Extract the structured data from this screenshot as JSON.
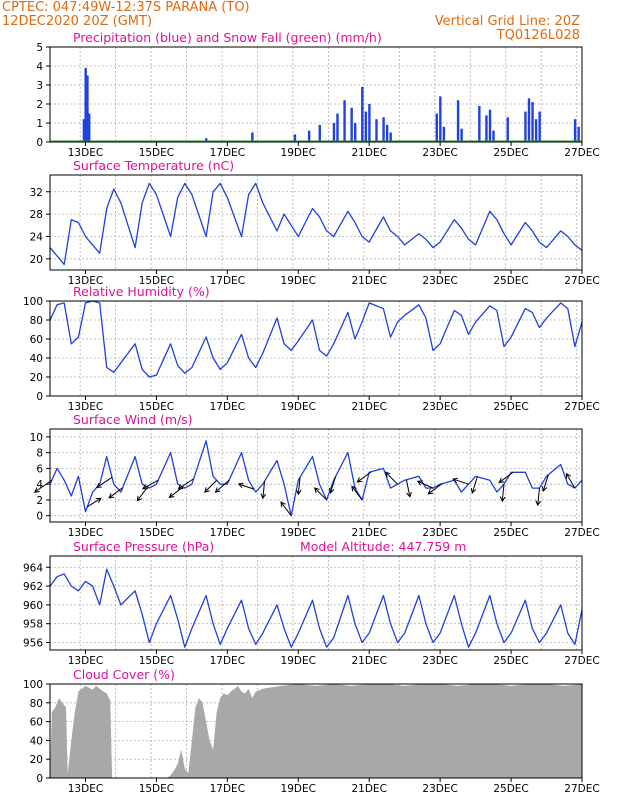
{
  "header": {
    "line1": "CPTEC:   047:49W-12:37S   PARANA (TO)",
    "line2": "12DEC2020 20Z (GMT)",
    "grid_note": "Vertical Grid Line: 20Z",
    "run_id": "TQ0126L028",
    "text_color": "#e06a10"
  },
  "x_ticks": [
    "13DEC",
    "15DEC",
    "17DEC",
    "19DEC",
    "21DEC",
    "23DEC",
    "25DEC",
    "27DEC"
  ],
  "chart_data": [
    {
      "type": "bar",
      "title": "Precipitation (blue) and Snow Fall (green) (mm/h)",
      "ylim": [
        0,
        5
      ],
      "yticks": [
        "0",
        "1",
        "2",
        "3",
        "4",
        "5"
      ],
      "series": [
        {
          "name": "Precipitation",
          "color": "#2040e0",
          "x_days": [
            12.95,
            13.0,
            13.05,
            13.1,
            16.4,
            17.7,
            18.9,
            19.3,
            19.6,
            20.0,
            20.1,
            20.3,
            20.5,
            20.6,
            20.8,
            20.9,
            21.0,
            21.2,
            21.4,
            21.5,
            21.6,
            22.9,
            23.0,
            23.1,
            23.5,
            23.6,
            24.1,
            24.3,
            24.4,
            24.5,
            24.9,
            25.4,
            25.5,
            25.6,
            25.7,
            25.8,
            26.8,
            26.9
          ],
          "values": [
            1.2,
            3.9,
            3.5,
            1.5,
            0.2,
            0.5,
            0.4,
            0.6,
            0.9,
            1.0,
            1.5,
            2.2,
            1.8,
            1.0,
            2.9,
            1.6,
            2.0,
            1.2,
            1.3,
            0.9,
            0.5,
            1.5,
            2.4,
            0.8,
            2.2,
            0.7,
            1.9,
            1.4,
            1.7,
            0.6,
            1.3,
            1.6,
            2.3,
            2.1,
            1.2,
            1.6,
            1.2,
            0.8
          ]
        },
        {
          "name": "Snow Fall",
          "color": "#20a020",
          "x_days": [],
          "values": []
        }
      ]
    },
    {
      "type": "line",
      "title": "Surface Temperature (nC)",
      "ylim": [
        18,
        35
      ],
      "yticks": [
        "20",
        "24",
        "28",
        "32"
      ],
      "series": [
        {
          "color": "#2040e0",
          "x_days": [
            12.0,
            12.2,
            12.4,
            12.6,
            12.8,
            13.0,
            13.2,
            13.4,
            13.6,
            13.8,
            14.0,
            14.4,
            14.6,
            14.8,
            15.0,
            15.4,
            15.6,
            15.8,
            16.0,
            16.4,
            16.6,
            16.8,
            17.0,
            17.4,
            17.6,
            17.8,
            18.0,
            18.4,
            18.6,
            18.8,
            19.0,
            19.4,
            19.6,
            19.8,
            20.0,
            20.4,
            20.6,
            20.8,
            21.0,
            21.4,
            21.6,
            21.8,
            22.0,
            22.4,
            22.6,
            22.8,
            23.0,
            23.4,
            23.6,
            23.8,
            24.0,
            24.4,
            24.6,
            24.8,
            25.0,
            25.4,
            25.6,
            25.8,
            26.0,
            26.4,
            26.6,
            26.8,
            27.0
          ],
          "values": [
            22,
            20.5,
            19,
            27,
            26.5,
            24,
            22.5,
            21,
            29,
            32.5,
            30,
            22,
            30,
            33.5,
            31.5,
            24,
            31,
            33.5,
            31.5,
            24,
            32,
            33.5,
            31,
            24,
            31.5,
            33.5,
            30,
            25,
            28,
            26,
            24,
            29,
            27.5,
            25,
            24,
            28.5,
            26.5,
            24,
            23,
            27.5,
            25,
            24,
            22.5,
            24.5,
            23.5,
            22,
            23,
            27,
            25.5,
            23.5,
            22.5,
            28.5,
            27,
            24.5,
            22.5,
            26.5,
            25,
            23,
            22,
            25,
            24,
            22.5,
            21.5
          ]
        }
      ]
    },
    {
      "type": "line",
      "title": "Relative Humidity (%)",
      "ylim": [
        0,
        100
      ],
      "yticks": [
        "0",
        "20",
        "40",
        "60",
        "80",
        "100"
      ],
      "series": [
        {
          "color": "#2040e0",
          "x_days": [
            12.0,
            12.2,
            12.4,
            12.6,
            12.8,
            13.0,
            13.2,
            13.4,
            13.6,
            13.8,
            14.0,
            14.4,
            14.6,
            14.8,
            15.0,
            15.4,
            15.6,
            15.8,
            16.0,
            16.4,
            16.6,
            16.8,
            17.0,
            17.4,
            17.6,
            17.8,
            18.0,
            18.4,
            18.6,
            18.8,
            19.0,
            19.4,
            19.6,
            19.8,
            20.0,
            20.4,
            20.6,
            20.8,
            21.0,
            21.4,
            21.6,
            21.8,
            22.0,
            22.4,
            22.6,
            22.8,
            23.0,
            23.4,
            23.6,
            23.8,
            24.0,
            24.4,
            24.6,
            24.8,
            25.0,
            25.4,
            25.6,
            25.8,
            26.0,
            26.4,
            26.6,
            26.8,
            27.0
          ],
          "values": [
            80,
            96,
            98,
            55,
            62,
            98,
            100,
            98,
            30,
            25,
            35,
            55,
            28,
            20,
            22,
            55,
            32,
            24,
            30,
            62,
            40,
            28,
            35,
            65,
            40,
            30,
            45,
            82,
            55,
            48,
            58,
            80,
            48,
            42,
            55,
            88,
            60,
            78,
            98,
            92,
            62,
            78,
            85,
            96,
            82,
            48,
            55,
            90,
            85,
            65,
            78,
            95,
            90,
            52,
            62,
            92,
            88,
            72,
            82,
            98,
            92,
            52,
            78
          ]
        }
      ]
    },
    {
      "type": "line",
      "title": "Surface Wind (m/s)",
      "ylim": [
        -0.8,
        11
      ],
      "yticks": [
        "0",
        "2",
        "4",
        "6",
        "8",
        "10"
      ],
      "series": [
        {
          "color": "#2040e0",
          "x_days": [
            12.0,
            12.2,
            12.4,
            12.6,
            12.8,
            13.0,
            13.2,
            13.4,
            13.6,
            13.8,
            14.0,
            14.4,
            14.6,
            14.8,
            15.0,
            15.4,
            15.6,
            15.8,
            16.0,
            16.4,
            16.6,
            16.8,
            17.0,
            17.4,
            17.6,
            17.8,
            18.0,
            18.4,
            18.6,
            18.8,
            19.0,
            19.4,
            19.6,
            19.8,
            20.0,
            20.4,
            20.6,
            20.8,
            21.0,
            21.4,
            21.6,
            21.8,
            22.0,
            22.4,
            22.6,
            22.8,
            23.0,
            23.4,
            23.6,
            23.8,
            24.0,
            24.4,
            24.6,
            24.8,
            25.0,
            25.4,
            25.6,
            25.8,
            26.0,
            26.4,
            26.6,
            26.8,
            27.0
          ],
          "values": [
            4,
            6,
            4.5,
            2.5,
            5,
            0.5,
            3,
            4,
            7.5,
            4,
            3,
            7.5,
            4,
            3.5,
            4,
            8,
            4,
            3.5,
            4,
            9.5,
            5,
            4,
            4,
            8,
            4.5,
            3,
            4,
            7,
            4,
            0,
            4.5,
            7.5,
            4,
            2,
            4.5,
            8,
            3.5,
            2,
            5.5,
            6,
            3.5,
            4,
            4.5,
            5,
            3.5,
            3.5,
            4,
            4.5,
            3,
            4,
            5,
            4.5,
            3,
            4,
            5.5,
            5.5,
            3.5,
            3.5,
            5,
            6.5,
            4,
            3.5,
            4.5
          ]
        }
      ],
      "arrows": [
        {
          "x_day": 12.05,
          "dx": -1.0,
          "dy": -0.7
        },
        {
          "x_day": 13.05,
          "dx": 0.8,
          "dy": 0.5
        },
        {
          "x_day": 13.75,
          "dx": -0.9,
          "dy": -0.6
        },
        {
          "x_day": 14.05,
          "dx": -0.8,
          "dy": -0.6
        },
        {
          "x_day": 14.75,
          "dx": -0.6,
          "dy": -0.8
        },
        {
          "x_day": 15.05,
          "dx": -0.9,
          "dy": -0.5
        },
        {
          "x_day": 15.75,
          "dx": -0.8,
          "dy": -0.6
        },
        {
          "x_day": 16.05,
          "dx": -0.9,
          "dy": -0.6
        },
        {
          "x_day": 16.7,
          "dx": -0.7,
          "dy": -0.7
        },
        {
          "x_day": 17.05,
          "dx": -0.8,
          "dy": -0.7
        },
        {
          "x_day": 17.75,
          "dx": -0.9,
          "dy": 0.3
        },
        {
          "x_day": 18.05,
          "dx": -0.1,
          "dy": -1.0
        },
        {
          "x_day": 18.8,
          "dx": -0.6,
          "dy": 0.8
        },
        {
          "x_day": 19.05,
          "dx": -0.1,
          "dy": -1.0
        },
        {
          "x_day": 19.8,
          "dx": -0.7,
          "dy": 0.7
        },
        {
          "x_day": 20.05,
          "dx": -0.3,
          "dy": -0.95
        },
        {
          "x_day": 20.8,
          "dx": -0.6,
          "dy": 0.8
        },
        {
          "x_day": 21.05,
          "dx": -0.8,
          "dy": -0.6
        },
        {
          "x_day": 21.8,
          "dx": -0.7,
          "dy": 0.7
        },
        {
          "x_day": 22.05,
          "dx": 0.2,
          "dy": -1.0
        },
        {
          "x_day": 22.8,
          "dx": -0.9,
          "dy": 0.4
        },
        {
          "x_day": 23.05,
          "dx": -0.8,
          "dy": -0.6
        },
        {
          "x_day": 23.8,
          "dx": -0.9,
          "dy": 0.3
        },
        {
          "x_day": 24.05,
          "dx": -0.3,
          "dy": -0.95
        },
        {
          "x_day": 24.8,
          "dx": -0.1,
          "dy": -1.0
        },
        {
          "x_day": 25.05,
          "dx": -0.8,
          "dy": -0.6
        },
        {
          "x_day": 25.8,
          "dx": -0.1,
          "dy": -1.0
        },
        {
          "x_day": 26.05,
          "dx": -0.3,
          "dy": -0.95
        },
        {
          "x_day": 26.8,
          "dx": -0.5,
          "dy": 0.85
        }
      ]
    },
    {
      "type": "line",
      "title": "Surface Pressure (hPa)",
      "annotation": "Model Altitude: 447.759  m",
      "ylim": [
        955.2,
        965.2
      ],
      "yticks": [
        "956",
        "958",
        "960",
        "962",
        "964"
      ],
      "series": [
        {
          "color": "#2040e0",
          "x_days": [
            12.0,
            12.2,
            12.4,
            12.6,
            12.8,
            13.0,
            13.2,
            13.4,
            13.6,
            13.8,
            14.0,
            14.4,
            14.6,
            14.8,
            15.0,
            15.4,
            15.6,
            15.8,
            16.0,
            16.4,
            16.6,
            16.8,
            17.0,
            17.4,
            17.6,
            17.8,
            18.0,
            18.4,
            18.6,
            18.8,
            19.0,
            19.4,
            19.6,
            19.8,
            20.0,
            20.4,
            20.6,
            20.8,
            21.0,
            21.4,
            21.6,
            21.8,
            22.0,
            22.4,
            22.6,
            22.8,
            23.0,
            23.4,
            23.6,
            23.8,
            24.0,
            24.4,
            24.6,
            24.8,
            25.0,
            25.4,
            25.6,
            25.8,
            26.0,
            26.4,
            26.6,
            26.8,
            27.0
          ],
          "values": [
            962,
            963,
            963.3,
            962,
            961.5,
            962.5,
            962,
            960,
            963.8,
            962,
            960,
            961.5,
            959,
            956,
            958,
            961,
            958.5,
            955.5,
            957.5,
            961,
            958,
            955.8,
            957.5,
            960.5,
            957.5,
            955.8,
            957,
            960,
            957.5,
            955.5,
            957,
            960.5,
            957.5,
            955.5,
            956.5,
            961,
            958,
            956,
            957,
            961,
            958,
            956,
            957,
            961,
            958,
            956,
            957,
            961,
            958,
            955.5,
            957,
            961,
            958,
            956,
            957,
            960.5,
            957.5,
            956,
            957,
            960,
            957,
            955.8,
            959.5
          ]
        }
      ]
    },
    {
      "type": "area",
      "title": "Cloud Cover (%)",
      "ylim": [
        0,
        100
      ],
      "yticks": [
        "0",
        "20",
        "40",
        "60",
        "80",
        "100"
      ],
      "series": [
        {
          "color": "#a8a8a8",
          "x_days": [
            12.0,
            12.05,
            12.15,
            12.25,
            12.35,
            12.45,
            12.5,
            12.6,
            12.7,
            12.8,
            12.9,
            13.0,
            13.1,
            13.2,
            13.3,
            13.4,
            13.5,
            13.6,
            13.7,
            13.75,
            14.0,
            14.5,
            15.0,
            15.1,
            15.2,
            15.3,
            15.4,
            15.5,
            15.6,
            15.7,
            15.8,
            15.9,
            16.0,
            16.1,
            16.2,
            16.3,
            16.4,
            16.5,
            16.6,
            16.7,
            16.8,
            16.9,
            17.0,
            17.1,
            17.2,
            17.3,
            17.4,
            17.5,
            17.6,
            17.7,
            17.8,
            18.0,
            18.5,
            19.0,
            19.5,
            20.0,
            20.5,
            21.0,
            21.5,
            22.0,
            22.5,
            23.0,
            23.5,
            24.0,
            24.5,
            25.0,
            25.5,
            26.0,
            26.5,
            27.0
          ],
          "values": [
            0,
            70,
            75,
            85,
            80,
            75,
            5,
            40,
            70,
            92,
            95,
            98,
            96,
            94,
            98,
            95,
            92,
            90,
            82,
            0,
            0,
            0,
            0,
            0,
            0,
            0,
            3,
            8,
            15,
            30,
            10,
            5,
            40,
            75,
            85,
            80,
            60,
            40,
            30,
            70,
            85,
            90,
            88,
            92,
            95,
            98,
            92,
            90,
            95,
            85,
            92,
            95,
            98,
            100,
            98,
            100,
            98,
            100,
            100,
            98,
            100,
            100,
            98,
            100,
            100,
            98,
            100,
            100,
            98,
            100
          ]
        }
      ]
    }
  ]
}
